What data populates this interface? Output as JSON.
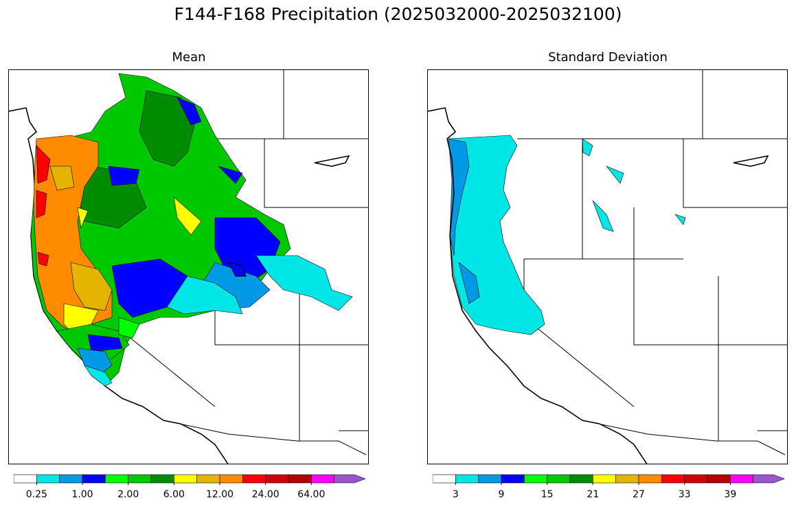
{
  "figure": {
    "title": "F144-F168 Precipitation (2025032000-2025032100)"
  },
  "panels": [
    {
      "title": "Mean",
      "colorbar": {
        "colors": [
          "#ffffff",
          "#00e5e5",
          "#0099e5",
          "#0000ff",
          "#00ff00",
          "#00c800",
          "#008c00",
          "#ffff00",
          "#e5b400",
          "#ff8c00",
          "#ff0000",
          "#d20000",
          "#b40000",
          "#ff00ff",
          "#9955cc"
        ],
        "tick_labels": [
          "0.25",
          "1.00",
          "2.00",
          "6.00",
          "12.00",
          "24.00",
          "64.00"
        ],
        "extend": "max"
      }
    },
    {
      "title": "Standard Deviation",
      "colorbar": {
        "colors": [
          "#ffffff",
          "#00e5e5",
          "#0099e5",
          "#0000ff",
          "#00ff00",
          "#00c800",
          "#008c00",
          "#ffff00",
          "#e5b400",
          "#ff8c00",
          "#ff0000",
          "#d20000",
          "#b40000",
          "#ff00ff",
          "#9955cc"
        ],
        "tick_labels": [
          "3",
          "9",
          "15",
          "21",
          "27",
          "33",
          "39"
        ],
        "extend": "max"
      }
    }
  ]
}
